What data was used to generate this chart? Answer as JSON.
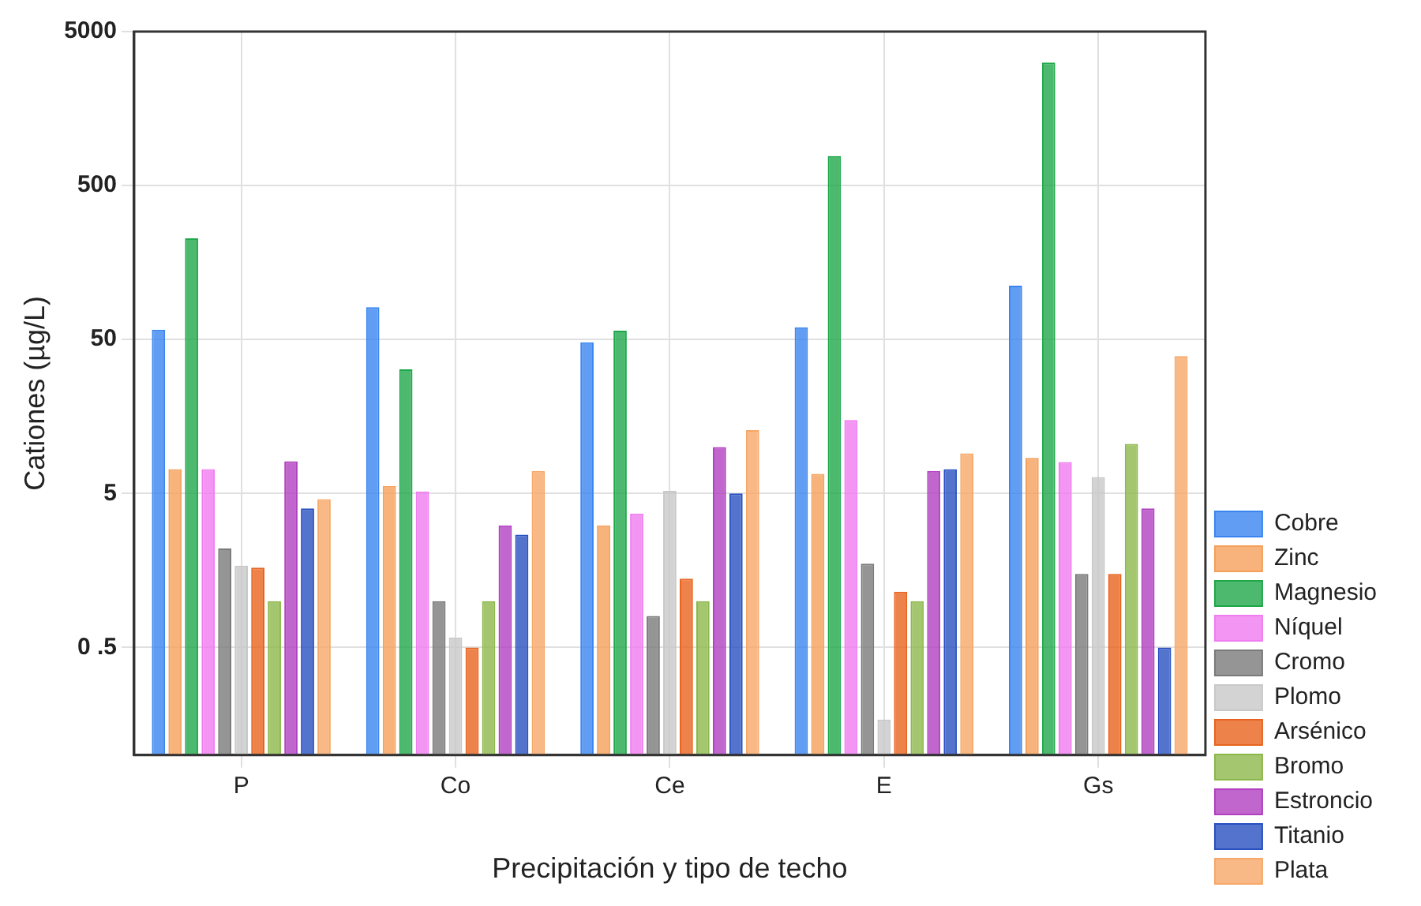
{
  "chart_data": {
    "type": "bar",
    "xlabel": "Precipitación y tipo de techo",
    "ylabel": "Cationes (µg/L)",
    "categories": [
      "P",
      "Co",
      "Ce",
      "E",
      "Gs"
    ],
    "log": "y",
    "ylim": [
      0.1,
      5000
    ],
    "yticks": [
      {
        "value": 0.5,
        "label": "0 .5"
      },
      5,
      50,
      500,
      5000
    ],
    "grid": true,
    "legend": "right",
    "series": [
      {
        "name": "Cobre",
        "color": "#3a86f0",
        "values": [
          58,
          81,
          48,
          60,
          112
        ]
      },
      {
        "name": "Zinc",
        "color": "#f5a05a",
        "values": [
          7.2,
          5.6,
          3.1,
          6.7,
          8.5
        ]
      },
      {
        "name": "Magnesio",
        "color": "#1fa84a",
        "values": [
          227,
          32,
          57,
          776,
          3150
        ]
      },
      {
        "name": "Níquel",
        "color": "#f07cf0",
        "values": [
          7.2,
          5.15,
          3.7,
          15,
          8
        ]
      },
      {
        "name": "Cromo",
        "color": "#7a7a7a",
        "values": [
          2.2,
          1,
          0.8,
          1.75,
          1.5
        ]
      },
      {
        "name": "Plomo",
        "color": "#c8c8c8",
        "values": [
          1.7,
          0.58,
          5.2,
          0.17,
          6.4
        ]
      },
      {
        "name": "Arsénico",
        "color": "#e8641e",
        "values": [
          1.65,
          0.5,
          1.4,
          1.15,
          1.5
        ]
      },
      {
        "name": "Bromo",
        "color": "#8cb84a",
        "values": [
          1,
          1,
          1,
          1,
          10.5
        ]
      },
      {
        "name": "Estroncio",
        "color": "#b040c0",
        "values": [
          8.1,
          3.1,
          10,
          7,
          4
        ]
      },
      {
        "name": "Titanio",
        "color": "#2850c0",
        "values": [
          4,
          2.7,
          5,
          7.2,
          0.5
        ]
      },
      {
        "name": "Plata",
        "color": "#f7a868",
        "values": [
          4.6,
          7,
          12.9,
          9.1,
          39
        ]
      }
    ]
  }
}
